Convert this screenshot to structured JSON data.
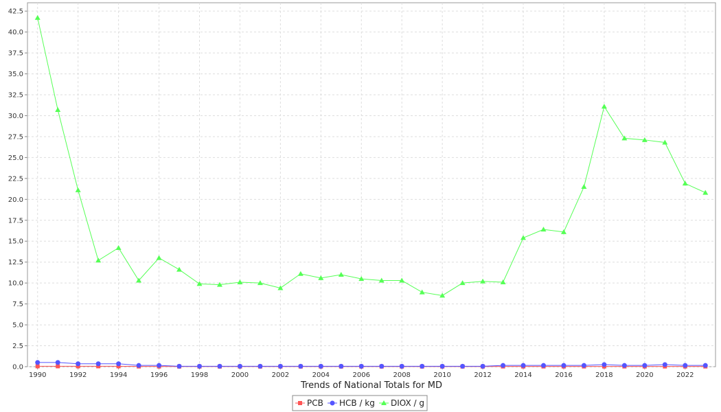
{
  "chart_data": {
    "type": "line",
    "title": "",
    "xlabel": "Trends of National Totals for MD",
    "ylabel": "",
    "x": [
      1990,
      1991,
      1992,
      1993,
      1994,
      1995,
      1996,
      1997,
      1998,
      1999,
      2000,
      2001,
      2002,
      2003,
      2004,
      2005,
      2006,
      2007,
      2008,
      2009,
      2010,
      2011,
      2012,
      2013,
      2014,
      2015,
      2016,
      2017,
      2018,
      2019,
      2020,
      2021,
      2022,
      2023
    ],
    "x_ticks": [
      1990,
      1992,
      1994,
      1996,
      1998,
      2000,
      2002,
      2004,
      2006,
      2008,
      2010,
      2012,
      2014,
      2016,
      2018,
      2020,
      2022
    ],
    "xlim": [
      1989.5,
      2023.5
    ],
    "ylim": [
      0,
      43.5
    ],
    "y_ticks": [
      "0.0",
      "2.5",
      "5.0",
      "7.5",
      "10.0",
      "12.5",
      "15.0",
      "17.5",
      "20.0",
      "22.5",
      "25.0",
      "27.5",
      "30.0",
      "32.5",
      "35.0",
      "37.5",
      "40.0",
      "42.5"
    ],
    "grid": true,
    "legend_position": "bottom",
    "series": [
      {
        "name": "PCB",
        "color": "#ff5555",
        "marker": "square",
        "values": [
          0.05,
          0.05,
          0.05,
          0.05,
          0.05,
          0.03,
          0.03,
          0.02,
          0.02,
          0.02,
          0.02,
          0.02,
          0.02,
          0.02,
          0.02,
          0.02,
          0.02,
          0.02,
          0.02,
          0.02,
          0.02,
          0.02,
          0.02,
          0.03,
          0.03,
          0.03,
          0.03,
          0.03,
          0.03,
          0.03,
          0.03,
          0.03,
          0.03,
          0.03
        ]
      },
      {
        "name": "HCB / kg",
        "color": "#5555ff",
        "marker": "circle",
        "values": [
          0.5,
          0.5,
          0.35,
          0.35,
          0.35,
          0.15,
          0.15,
          0.05,
          0.05,
          0.05,
          0.05,
          0.05,
          0.05,
          0.05,
          0.05,
          0.05,
          0.05,
          0.05,
          0.05,
          0.05,
          0.05,
          0.05,
          0.05,
          0.15,
          0.15,
          0.15,
          0.15,
          0.15,
          0.25,
          0.15,
          0.15,
          0.25,
          0.15,
          0.15
        ]
      },
      {
        "name": "DIOX / g",
        "color": "#55ff55",
        "marker": "triangle",
        "values": [
          41.7,
          30.7,
          21.1,
          12.7,
          14.2,
          10.3,
          13.0,
          11.6,
          9.9,
          9.8,
          10.1,
          10.0,
          9.4,
          11.1,
          10.6,
          11.0,
          10.5,
          10.3,
          10.3,
          8.9,
          8.5,
          10.0,
          10.2,
          10.1,
          15.4,
          16.4,
          16.1,
          21.5,
          31.1,
          27.3,
          27.1,
          26.8,
          21.9,
          20.8
        ]
      }
    ]
  }
}
